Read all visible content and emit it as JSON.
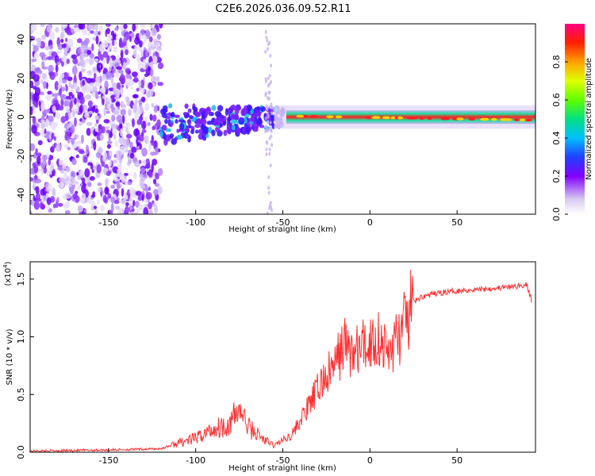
{
  "title": "C2E6.2026.036.09.52.R11",
  "spectrogram": {
    "type": "heatmap",
    "xlabel": "Height of straight line (km)",
    "ylabel": "Frequency (Hz)",
    "xlim": [
      -195,
      95
    ],
    "ylim": [
      -50,
      48
    ],
    "xticks": [
      "-150",
      "-100",
      "-50",
      "0",
      "50"
    ],
    "xtick_values": [
      -150,
      -100,
      -50,
      0,
      50
    ],
    "yticks": [
      "-40",
      "-20",
      "0",
      "20",
      "40"
    ],
    "ytick_values": [
      -40,
      -20,
      0,
      20,
      40
    ]
  },
  "colorbar": {
    "label": "Normalized spectral amplitude",
    "ticks": [
      "0.0",
      "0.2",
      "0.4",
      "0.6",
      "0.8"
    ],
    "tick_values": [
      0.0,
      0.2,
      0.4,
      0.6,
      0.8
    ],
    "range": [
      0.0,
      1.0
    ]
  },
  "chart_data": {
    "type": "line",
    "title": "C2E6.2026.036.09.52.R11",
    "xlabel": "Height of straight line (km)",
    "ylabel": "SNR (10 * v/v)",
    "scale_label": "(x10",
    "scale_exponent": "4",
    "xlim": [
      -195,
      95
    ],
    "ylim": [
      0,
      1.65
    ],
    "xticks": [
      "-150",
      "-100",
      "-50",
      "0",
      "50"
    ],
    "xtick_values": [
      -150,
      -100,
      -50,
      0,
      50
    ],
    "yticks": [
      "0.0",
      "0.5",
      "1.0",
      "1.5"
    ],
    "ytick_values": [
      0.0,
      0.5,
      1.0,
      1.5
    ],
    "series": [
      {
        "name": "SNR",
        "color": "#ff3030",
        "x": [
          -195,
          -150,
          -120,
          -110,
          -100,
          -90,
          -80,
          -75,
          -70,
          -60,
          -55,
          -45,
          -35,
          -28,
          -20,
          -15,
          -10,
          -5,
          0,
          5,
          10,
          20,
          25,
          30,
          40,
          50,
          60,
          70,
          80,
          90,
          93
        ],
        "y": [
          0.01,
          0.02,
          0.03,
          0.08,
          0.12,
          0.2,
          0.25,
          0.38,
          0.22,
          0.1,
          0.06,
          0.15,
          0.4,
          0.6,
          0.75,
          0.95,
          0.85,
          0.9,
          0.95,
          1.0,
          0.85,
          1.1,
          1.3,
          1.35,
          1.38,
          1.4,
          1.41,
          1.42,
          1.43,
          1.45,
          1.3
        ]
      }
    ]
  }
}
